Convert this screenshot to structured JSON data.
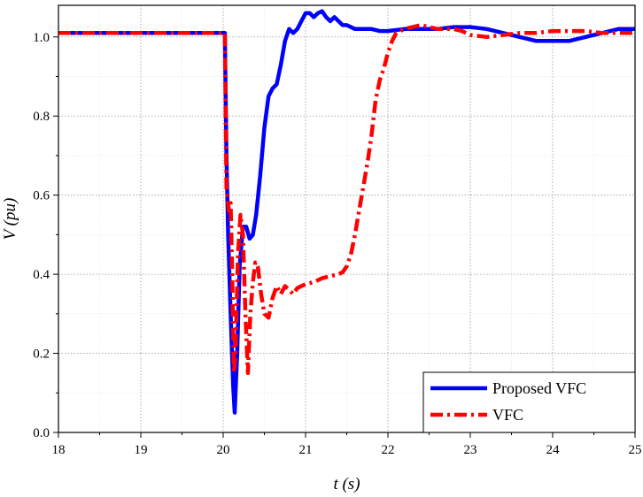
{
  "chart_data": {
    "type": "line",
    "title": "",
    "xlabel": "t (s)",
    "ylabel": "V (pu)",
    "xlim": [
      18,
      25
    ],
    "ylim": [
      0,
      1.08
    ],
    "x_ticks": [
      18,
      19,
      20,
      21,
      22,
      23,
      24,
      25
    ],
    "x_tick_labels": [
      "18",
      "19",
      "20",
      "21",
      "22",
      "23",
      "24",
      "25"
    ],
    "y_ticks": [
      0,
      0.2,
      0.4,
      0.6,
      0.8,
      1.0
    ],
    "y_tick_labels": [
      "0.0",
      "0.2",
      "0.4",
      "0.6",
      "0.8",
      "1.0"
    ],
    "grid": true,
    "legend_position": "bottom-right",
    "series": [
      {
        "name": "Proposed VFC",
        "color": "#0000ff",
        "dash": "solid",
        "points": [
          [
            18.0,
            1.01
          ],
          [
            20.02,
            1.01
          ],
          [
            20.04,
            0.7
          ],
          [
            20.06,
            0.5
          ],
          [
            20.09,
            0.3
          ],
          [
            20.12,
            0.12
          ],
          [
            20.14,
            0.05
          ],
          [
            20.17,
            0.2
          ],
          [
            20.2,
            0.42
          ],
          [
            20.24,
            0.52
          ],
          [
            20.28,
            0.52
          ],
          [
            20.32,
            0.49
          ],
          [
            20.36,
            0.5
          ],
          [
            20.4,
            0.55
          ],
          [
            20.45,
            0.65
          ],
          [
            20.5,
            0.77
          ],
          [
            20.55,
            0.85
          ],
          [
            20.6,
            0.87
          ],
          [
            20.65,
            0.88
          ],
          [
            20.7,
            0.93
          ],
          [
            20.75,
            0.99
          ],
          [
            20.8,
            1.02
          ],
          [
            20.85,
            1.01
          ],
          [
            20.9,
            1.02
          ],
          [
            20.95,
            1.04
          ],
          [
            21.0,
            1.06
          ],
          [
            21.05,
            1.06
          ],
          [
            21.1,
            1.05
          ],
          [
            21.15,
            1.06
          ],
          [
            21.2,
            1.065
          ],
          [
            21.25,
            1.05
          ],
          [
            21.3,
            1.04
          ],
          [
            21.35,
            1.05
          ],
          [
            21.4,
            1.04
          ],
          [
            21.45,
            1.03
          ],
          [
            21.5,
            1.03
          ],
          [
            21.6,
            1.02
          ],
          [
            21.7,
            1.02
          ],
          [
            21.8,
            1.02
          ],
          [
            21.9,
            1.015
          ],
          [
            22.0,
            1.015
          ],
          [
            22.2,
            1.02
          ],
          [
            22.4,
            1.02
          ],
          [
            22.6,
            1.02
          ],
          [
            22.8,
            1.025
          ],
          [
            23.0,
            1.025
          ],
          [
            23.2,
            1.02
          ],
          [
            23.4,
            1.01
          ],
          [
            23.6,
            1.0
          ],
          [
            23.8,
            0.99
          ],
          [
            24.0,
            0.99
          ],
          [
            24.2,
            0.99
          ],
          [
            24.4,
            1.0
          ],
          [
            24.6,
            1.01
          ],
          [
            24.8,
            1.02
          ],
          [
            25.0,
            1.02
          ]
        ]
      },
      {
        "name": "VFC",
        "color": "#ff0000",
        "dash": "dashdot",
        "points": [
          [
            18.0,
            1.01
          ],
          [
            20.02,
            1.01
          ],
          [
            20.04,
            0.62
          ],
          [
            20.07,
            0.56
          ],
          [
            20.09,
            0.58
          ],
          [
            20.11,
            0.4
          ],
          [
            20.13,
            0.15
          ],
          [
            20.15,
            0.2
          ],
          [
            20.18,
            0.45
          ],
          [
            20.21,
            0.55
          ],
          [
            20.24,
            0.5
          ],
          [
            20.27,
            0.3
          ],
          [
            20.3,
            0.15
          ],
          [
            20.33,
            0.3
          ],
          [
            20.36,
            0.38
          ],
          [
            20.39,
            0.43
          ],
          [
            20.42,
            0.42
          ],
          [
            20.46,
            0.35
          ],
          [
            20.5,
            0.3
          ],
          [
            20.55,
            0.29
          ],
          [
            20.6,
            0.34
          ],
          [
            20.65,
            0.37
          ],
          [
            20.7,
            0.35
          ],
          [
            20.75,
            0.37
          ],
          [
            20.8,
            0.36
          ],
          [
            20.85,
            0.35
          ],
          [
            20.9,
            0.365
          ],
          [
            20.95,
            0.37
          ],
          [
            21.0,
            0.375
          ],
          [
            21.1,
            0.38
          ],
          [
            21.2,
            0.39
          ],
          [
            21.3,
            0.395
          ],
          [
            21.4,
            0.4
          ],
          [
            21.45,
            0.405
          ],
          [
            21.5,
            0.42
          ],
          [
            21.55,
            0.45
          ],
          [
            21.6,
            0.5
          ],
          [
            21.65,
            0.56
          ],
          [
            21.7,
            0.62
          ],
          [
            21.75,
            0.68
          ],
          [
            21.8,
            0.75
          ],
          [
            21.85,
            0.84
          ],
          [
            21.9,
            0.89
          ],
          [
            21.95,
            0.92
          ],
          [
            22.0,
            0.96
          ],
          [
            22.05,
            0.99
          ],
          [
            22.1,
            1.01
          ],
          [
            22.2,
            1.02
          ],
          [
            22.3,
            1.025
          ],
          [
            22.4,
            1.03
          ],
          [
            22.5,
            1.025
          ],
          [
            22.6,
            1.02
          ],
          [
            22.7,
            1.02
          ],
          [
            22.8,
            1.02
          ],
          [
            22.9,
            1.015
          ],
          [
            23.0,
            1.005
          ],
          [
            23.2,
            1.0
          ],
          [
            23.4,
            1.005
          ],
          [
            23.6,
            1.01
          ],
          [
            23.8,
            1.01
          ],
          [
            24.0,
            1.015
          ],
          [
            24.2,
            1.015
          ],
          [
            24.4,
            1.015
          ],
          [
            24.6,
            1.01
          ],
          [
            24.8,
            1.01
          ],
          [
            25.0,
            1.01
          ]
        ]
      }
    ]
  }
}
